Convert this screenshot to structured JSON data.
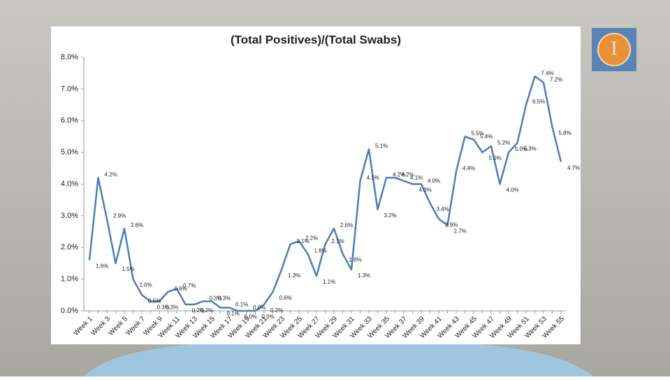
{
  "chart_data": {
    "type": "line",
    "title": "(Total Positives)/(Total Swabs)",
    "categories": [
      "Week 1",
      null,
      "Week 3",
      null,
      "Week 5",
      null,
      "Week 7",
      null,
      "Week 9",
      null,
      "Week 11",
      null,
      "Week 13",
      null,
      "Week 15",
      null,
      "Week 17",
      null,
      "Week 19",
      null,
      "Week 21",
      null,
      "Week 23",
      null,
      "Week 25",
      null,
      "Week 27",
      null,
      "Week 29",
      null,
      "Week 31",
      null,
      "Week 33",
      null,
      "Week 35",
      null,
      "Week 37",
      null,
      "Week 39",
      null,
      "Week 41",
      null,
      "Week 43",
      null,
      "Week 45",
      null,
      "Week 47",
      null,
      "Week 49",
      null,
      "Week 51",
      null,
      "Week 53",
      null,
      "Week 55"
    ],
    "values": [
      1.6,
      4.2,
      2.9,
      1.5,
      2.6,
      1.0,
      0.5,
      0.3,
      0.3,
      0.6,
      0.7,
      0.2,
      0.2,
      0.3,
      0.3,
      0.1,
      0.1,
      0.0,
      0.0,
      0.0,
      0.2,
      0.6,
      1.3,
      2.1,
      2.2,
      1.8,
      1.1,
      2.1,
      2.6,
      1.8,
      1.3,
      4.1,
      5.1,
      3.2,
      4.2,
      4.2,
      4.1,
      4.0,
      4.0,
      3.4,
      2.9,
      2.7,
      4.4,
      5.5,
      5.4,
      5.0,
      5.2,
      4.0,
      5.0,
      5.3,
      6.5,
      7.4,
      7.2,
      5.8,
      4.7
    ],
    "value_labels": [
      "1.6%",
      "4.2%",
      "2.9%",
      "1.5%",
      "2.6%",
      "1.0%",
      "0.5%",
      "0.3%",
      "0.3%",
      "0.6%",
      "0.7%",
      "0.2%",
      "0.2%",
      "0.3%",
      "0.3%",
      "0.1%",
      "0.1%",
      "0.0%",
      "0.0%",
      "0.0%",
      "0.2%",
      "0.6%",
      "1.3%",
      "2.1%",
      "2.2%",
      "1.8%",
      "1.1%",
      "2.1%",
      "2.6%",
      "1.8%",
      "1.3%",
      "4.1%",
      "5.1%",
      "3.2%",
      "4.2%",
      "4.2%",
      "4.1%",
      "4.0%",
      "4.0%",
      "3.4%",
      "2.9%",
      "2.7%",
      "4.4%",
      "5.5%",
      "5.4%",
      "5.0%",
      "5.2%",
      "4.0%",
      "5.0%",
      "5.3%",
      "6.5%",
      "7.4%",
      "7.2%",
      "5.8%",
      "4.7%"
    ],
    "color": "#4a7ebb",
    "ylim": [
      0,
      8
    ],
    "yticks": [
      {
        "value": 0,
        "label": "0.0%"
      },
      {
        "value": 1,
        "label": "1.0%"
      },
      {
        "value": 2,
        "label": "2.0%"
      },
      {
        "value": 3,
        "label": "3.0%"
      },
      {
        "value": 4,
        "label": "4.0%"
      },
      {
        "value": 5,
        "label": "5.0%"
      },
      {
        "value": 6,
        "label": "6.0%"
      },
      {
        "value": 7,
        "label": "7.0%"
      },
      {
        "value": 8,
        "label": "8.0%"
      }
    ],
    "grid": false
  },
  "logo_text": "I"
}
